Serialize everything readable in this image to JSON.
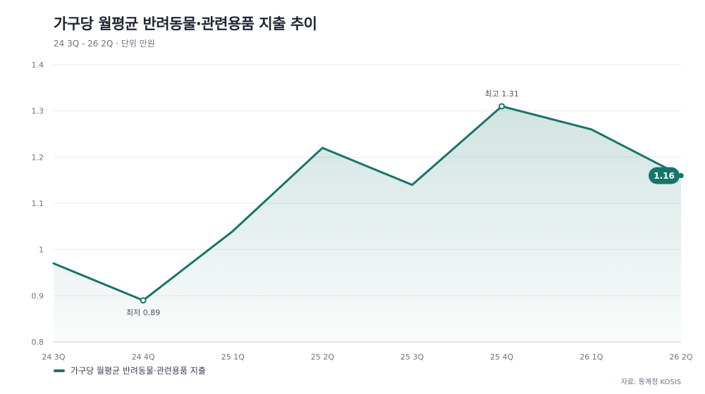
{
  "header": {
    "title": "가구당 월평균 반려동물·관련용품 지출 추이",
    "subtitle": "24 3Q - 26 2Q · 단위 만원"
  },
  "legend": {
    "label": "가구당 월평균 반려동물·관련용품 지출"
  },
  "source": "자료: 통계청 KOSIS",
  "colors": {
    "line": "#17756a",
    "fill": "#17756a",
    "grid": "#e8ebee"
  },
  "chart_data": {
    "type": "area",
    "categories": [
      "24 3Q",
      "24 4Q",
      "25 1Q",
      "25 2Q",
      "25 3Q",
      "25 4Q",
      "26 1Q",
      "26 2Q"
    ],
    "series": [
      {
        "name": "가구당 월평균 반려동물·관련용품 지출",
        "values": [
          0.97,
          0.89,
          1.04,
          1.22,
          1.14,
          1.31,
          1.26,
          1.16
        ]
      }
    ],
    "ylim": [
      0.8,
      1.4
    ],
    "yticks": [
      "0.8",
      "0.9",
      "1",
      "1.1",
      "1.2",
      "1.3",
      "1.4"
    ],
    "grid": true,
    "annotations": {
      "min": {
        "index": 1,
        "label": "최저 0.89"
      },
      "max": {
        "index": 5,
        "label": "최고 1.31"
      },
      "last": {
        "index": 7,
        "label": "1.16"
      }
    }
  }
}
